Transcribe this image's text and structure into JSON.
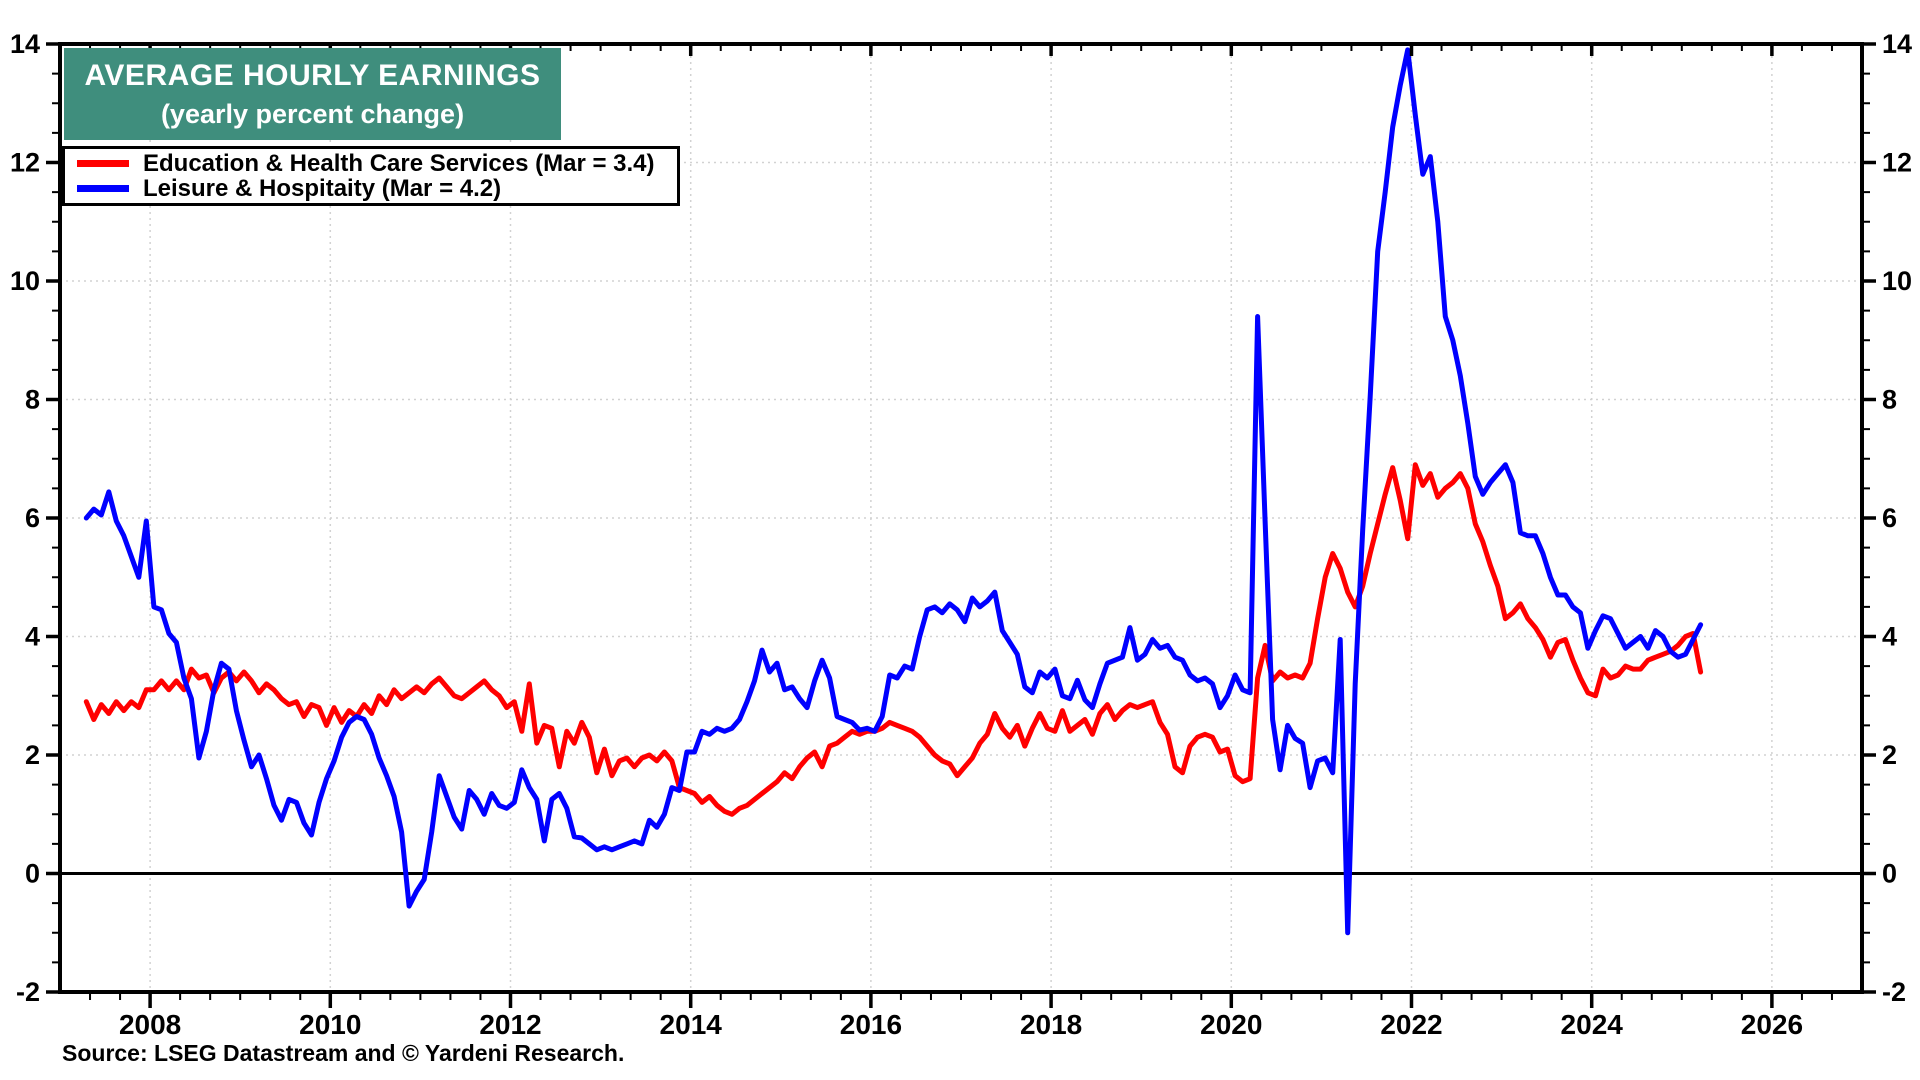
{
  "title": {
    "line1": "AVERAGE HOURLY EARNINGS",
    "line2": "(yearly percent change)"
  },
  "legend": {
    "items": [
      {
        "label": "Education & Health Care Services (Mar = 3.4)",
        "color": "#ff0000"
      },
      {
        "label": "Leisure & Hospitaity (Mar = 4.2)",
        "color": "#0000ff"
      }
    ]
  },
  "source_note": "Source: LSEG Datastream and © Yardeni Research.",
  "styles": {
    "title_bg": "#3f8e7d",
    "title_fg": "#ffffff",
    "grid_color": "#d2d2d2",
    "axis_color": "#000000",
    "background": "#ffffff"
  },
  "chart_data": {
    "type": "line",
    "title": "AVERAGE HOURLY EARNINGS",
    "subtitle": "(yearly percent change)",
    "grid": "dotted-light",
    "zero_line": true,
    "frequency": "monthly",
    "start_month": "2007-04",
    "end_month": "2025-03",
    "x_axis": {
      "range": [
        2007,
        2027
      ],
      "major_ticks": [
        2008,
        2010,
        2012,
        2014,
        2016,
        2018,
        2020,
        2022,
        2024,
        2026
      ],
      "minor_tick_interval_years": 0.33333
    },
    "y_axis": {
      "range": [
        -2,
        14
      ],
      "major_ticks": [
        14,
        12,
        10,
        8,
        6,
        4,
        2,
        0,
        -2
      ],
      "minor_tick_interval": 0.5,
      "label_sides": "both"
    },
    "series": [
      {
        "name": "Education & Health Care Services",
        "latest_label": "Mar = 3.4",
        "color": "#ff0000",
        "values": [
          2.9,
          2.6,
          2.85,
          2.7,
          2.9,
          2.75,
          2.9,
          2.8,
          3.1,
          3.1,
          3.25,
          3.1,
          3.25,
          3.1,
          3.45,
          3.3,
          3.35,
          3.05,
          3.3,
          3.4,
          3.25,
          3.4,
          3.25,
          3.05,
          3.2,
          3.1,
          2.95,
          2.85,
          2.9,
          2.65,
          2.85,
          2.8,
          2.5,
          2.8,
          2.55,
          2.75,
          2.65,
          2.85,
          2.7,
          3.0,
          2.85,
          3.1,
          2.95,
          3.05,
          3.15,
          3.05,
          3.2,
          3.3,
          3.15,
          3.0,
          2.95,
          3.05,
          3.15,
          3.25,
          3.1,
          3.0,
          2.8,
          2.9,
          2.4,
          3.2,
          2.2,
          2.5,
          2.45,
          1.8,
          2.4,
          2.2,
          2.55,
          2.3,
          1.7,
          2.1,
          1.65,
          1.9,
          1.95,
          1.8,
          1.95,
          2.0,
          1.9,
          2.05,
          1.9,
          1.45,
          1.4,
          1.35,
          1.2,
          1.3,
          1.15,
          1.05,
          1.0,
          1.1,
          1.15,
          1.25,
          1.35,
          1.45,
          1.55,
          1.7,
          1.6,
          1.8,
          1.95,
          2.05,
          1.8,
          2.15,
          2.2,
          2.3,
          2.4,
          2.35,
          2.4,
          2.4,
          2.45,
          2.55,
          2.5,
          2.45,
          2.4,
          2.3,
          2.15,
          2.0,
          1.9,
          1.85,
          1.65,
          1.8,
          1.95,
          2.2,
          2.35,
          2.7,
          2.45,
          2.3,
          2.5,
          2.15,
          2.45,
          2.7,
          2.45,
          2.4,
          2.75,
          2.4,
          2.5,
          2.6,
          2.35,
          2.7,
          2.85,
          2.6,
          2.75,
          2.85,
          2.8,
          2.85,
          2.9,
          2.55,
          2.35,
          1.8,
          1.7,
          2.15,
          2.3,
          2.35,
          2.3,
          2.05,
          2.1,
          1.65,
          1.55,
          1.6,
          3.3,
          3.85,
          3.25,
          3.4,
          3.3,
          3.35,
          3.3,
          3.55,
          4.3,
          5.0,
          5.4,
          5.15,
          4.75,
          4.5,
          4.85,
          5.4,
          5.9,
          6.4,
          6.85,
          6.3,
          5.65,
          6.9,
          6.55,
          6.75,
          6.35,
          6.5,
          6.6,
          6.75,
          6.5,
          5.9,
          5.6,
          5.2,
          4.85,
          4.3,
          4.4,
          4.55,
          4.3,
          4.15,
          3.95,
          3.65,
          3.9,
          3.95,
          3.6,
          3.3,
          3.05,
          3.0,
          3.45,
          3.3,
          3.35,
          3.5,
          3.45,
          3.45,
          3.6,
          3.65,
          3.7,
          3.75,
          3.85,
          4.0,
          4.05,
          3.4
        ]
      },
      {
        "name": "Leisure & Hospitaity",
        "latest_label": "Mar = 4.2",
        "color": "#0000ff",
        "values": [
          6.0,
          6.15,
          6.05,
          6.44,
          5.95,
          5.7,
          5.35,
          5.0,
          5.95,
          4.5,
          4.45,
          4.05,
          3.9,
          3.3,
          2.95,
          1.95,
          2.4,
          3.1,
          3.55,
          3.45,
          2.75,
          2.25,
          1.8,
          2.0,
          1.6,
          1.15,
          0.9,
          1.25,
          1.2,
          0.85,
          0.65,
          1.2,
          1.6,
          1.9,
          2.3,
          2.55,
          2.65,
          2.6,
          2.35,
          1.95,
          1.65,
          1.3,
          0.7,
          -0.55,
          -0.3,
          -0.1,
          0.7,
          1.65,
          1.3,
          0.95,
          0.75,
          1.4,
          1.25,
          1.0,
          1.35,
          1.15,
          1.1,
          1.2,
          1.75,
          1.45,
          1.25,
          0.55,
          1.25,
          1.35,
          1.1,
          0.62,
          0.6,
          0.5,
          0.4,
          0.45,
          0.4,
          0.45,
          0.5,
          0.55,
          0.5,
          0.9,
          0.78,
          1.0,
          1.45,
          1.4,
          2.05,
          2.05,
          2.4,
          2.35,
          2.45,
          2.4,
          2.45,
          2.6,
          2.9,
          3.25,
          3.77,
          3.4,
          3.55,
          3.1,
          3.15,
          2.95,
          2.8,
          3.25,
          3.6,
          3.3,
          2.65,
          2.6,
          2.55,
          2.42,
          2.45,
          2.4,
          2.65,
          3.35,
          3.3,
          3.5,
          3.45,
          4.0,
          4.45,
          4.5,
          4.4,
          4.55,
          4.45,
          4.25,
          4.65,
          4.5,
          4.6,
          4.75,
          4.1,
          3.9,
          3.7,
          3.15,
          3.05,
          3.4,
          3.3,
          3.45,
          3.0,
          2.95,
          3.26,
          2.93,
          2.8,
          3.2,
          3.55,
          3.6,
          3.65,
          4.15,
          3.6,
          3.7,
          3.95,
          3.8,
          3.85,
          3.65,
          3.6,
          3.35,
          3.25,
          3.3,
          3.2,
          2.8,
          3.0,
          3.35,
          3.1,
          3.05,
          9.4,
          5.95,
          2.6,
          1.75,
          2.5,
          2.28,
          2.2,
          1.45,
          1.9,
          1.95,
          1.7,
          3.95,
          -1.0,
          3.2,
          5.8,
          8.05,
          10.5,
          11.5,
          12.6,
          13.3,
          13.9,
          12.8,
          11.8,
          12.1,
          11.0,
          9.4,
          9.0,
          8.4,
          7.6,
          6.7,
          6.4,
          6.6,
          6.75,
          6.9,
          6.6,
          5.75,
          5.7,
          5.7,
          5.4,
          5.0,
          4.7,
          4.7,
          4.5,
          4.4,
          3.8,
          4.1,
          4.35,
          4.3,
          4.05,
          3.8,
          3.9,
          4.0,
          3.8,
          4.1,
          4.0,
          3.75,
          3.65,
          3.7,
          3.95,
          4.2
        ]
      }
    ]
  }
}
